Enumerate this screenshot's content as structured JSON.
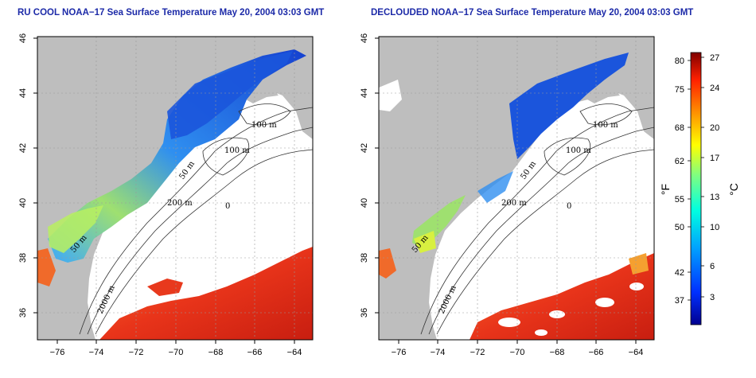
{
  "left_title": "RU COOL NOAA−17 Sea Surface Temperature May 20, 2004 03:03 GMT",
  "right_title": "DECLOUDED NOAA−17 Sea Surface Temperature May 20, 2004 03:03 GMT",
  "x_ticks": [
    "−76",
    "−74",
    "−72",
    "−70",
    "−68",
    "−66",
    "−64"
  ],
  "y_ticks": [
    "46",
    "44",
    "42",
    "40",
    "38",
    "36"
  ],
  "contours": [
    "100 m",
    "100 m",
    "50 m",
    "200 m",
    "50 m",
    "2000 m",
    "0"
  ],
  "colorbar": {
    "f_label": "°F",
    "c_label": "°C",
    "f_ticks": [
      "80",
      "75",
      "68",
      "62",
      "55",
      "50",
      "42",
      "37"
    ],
    "c_ticks": [
      "27",
      "24",
      "20",
      "17",
      "13",
      "10",
      "6",
      "3"
    ],
    "colors": [
      "#00008f",
      "#0030ff",
      "#00a0ff",
      "#00ffe0",
      "#80ff80",
      "#ffff00",
      "#ff9000",
      "#ff2000",
      "#800000"
    ]
  },
  "map_colors": {
    "land": "#bebebe",
    "ocean": "#ffffff",
    "warm": "#e8391d",
    "cold": "#1a5fe0"
  }
}
